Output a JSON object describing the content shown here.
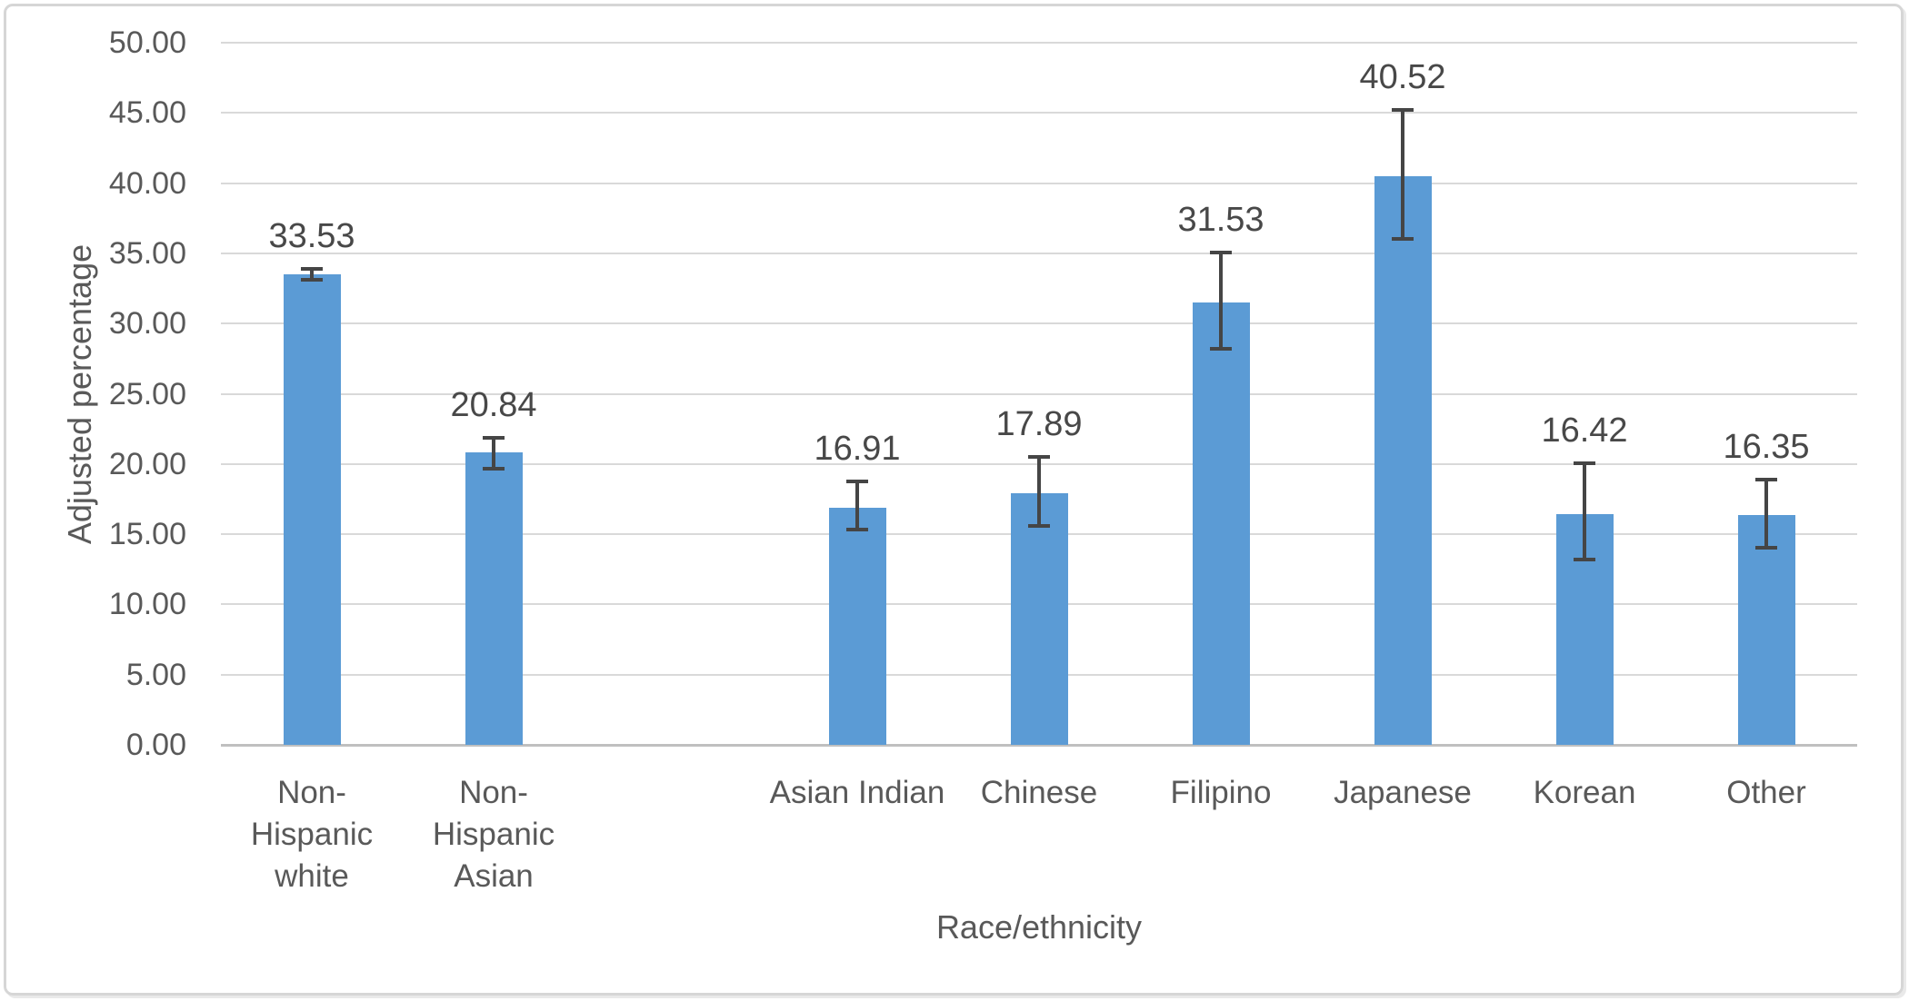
{
  "chart_data": {
    "type": "bar",
    "title": "",
    "xlabel": "Race/ethnicity",
    "ylabel": "Adjusted percentage",
    "ylim": [
      0,
      50
    ],
    "ytick_step": 5,
    "ytick_labels": [
      "0.00",
      "5.00",
      "10.00",
      "15.00",
      "20.00",
      "25.00",
      "30.00",
      "35.00",
      "40.00",
      "45.00",
      "50.00"
    ],
    "gridlines": true,
    "legend": "none",
    "categories": [
      "Non-Hispanic white",
      "Non-Hispanic Asian",
      "",
      "Asian Indian",
      "Chinese",
      "Filipino",
      "Japanese",
      "Korean",
      "Other"
    ],
    "values": [
      33.53,
      20.84,
      null,
      16.91,
      17.89,
      31.53,
      40.52,
      16.42,
      16.35
    ],
    "points": [
      {
        "category": "Non-Hispanic white",
        "lines": [
          "Non-",
          "Hispanic",
          "white"
        ],
        "value": 33.53,
        "label": "33.53",
        "err_up": 0.38,
        "err_down": 0.4
      },
      {
        "category": "Non-Hispanic Asian",
        "lines": [
          "Non-",
          "Hispanic",
          "Asian"
        ],
        "value": 20.84,
        "label": "20.84",
        "err_up": 1.05,
        "err_down": 1.2
      },
      {
        "category": "",
        "lines": [],
        "value": null,
        "label": "",
        "err_up": null,
        "err_down": null
      },
      {
        "category": "Asian Indian",
        "lines": [
          "Asian Indian"
        ],
        "value": 16.91,
        "label": "16.91",
        "err_up": 1.85,
        "err_down": 1.55
      },
      {
        "category": "Chinese",
        "lines": [
          "Chinese"
        ],
        "value": 17.89,
        "label": "17.89",
        "err_up": 2.6,
        "err_down": 2.3
      },
      {
        "category": "Filipino",
        "lines": [
          "Filipino"
        ],
        "value": 31.53,
        "label": "31.53",
        "err_up": 3.5,
        "err_down": 3.35
      },
      {
        "category": "Japanese",
        "lines": [
          "Japanese"
        ],
        "value": 40.52,
        "label": "40.52",
        "err_up": 4.7,
        "err_down": 4.5
      },
      {
        "category": "Korean",
        "lines": [
          "Korean"
        ],
        "value": 16.42,
        "label": "16.42",
        "err_up": 3.6,
        "err_down": 3.2
      },
      {
        "category": "Other",
        "lines": [
          "Other"
        ],
        "value": 16.35,
        "label": "16.35",
        "err_up": 2.55,
        "err_down": 2.3
      }
    ]
  },
  "colors": {
    "bar": "#5B9BD5",
    "gridline": "#D9D9D9",
    "axis_line": "#C0C0C0",
    "tick_text": "#595959",
    "title_text": "#595959",
    "data_label_text": "#484848",
    "error_bar": "#454545",
    "frame_border": "#D6D6D6",
    "background": "#FFFFFF"
  }
}
